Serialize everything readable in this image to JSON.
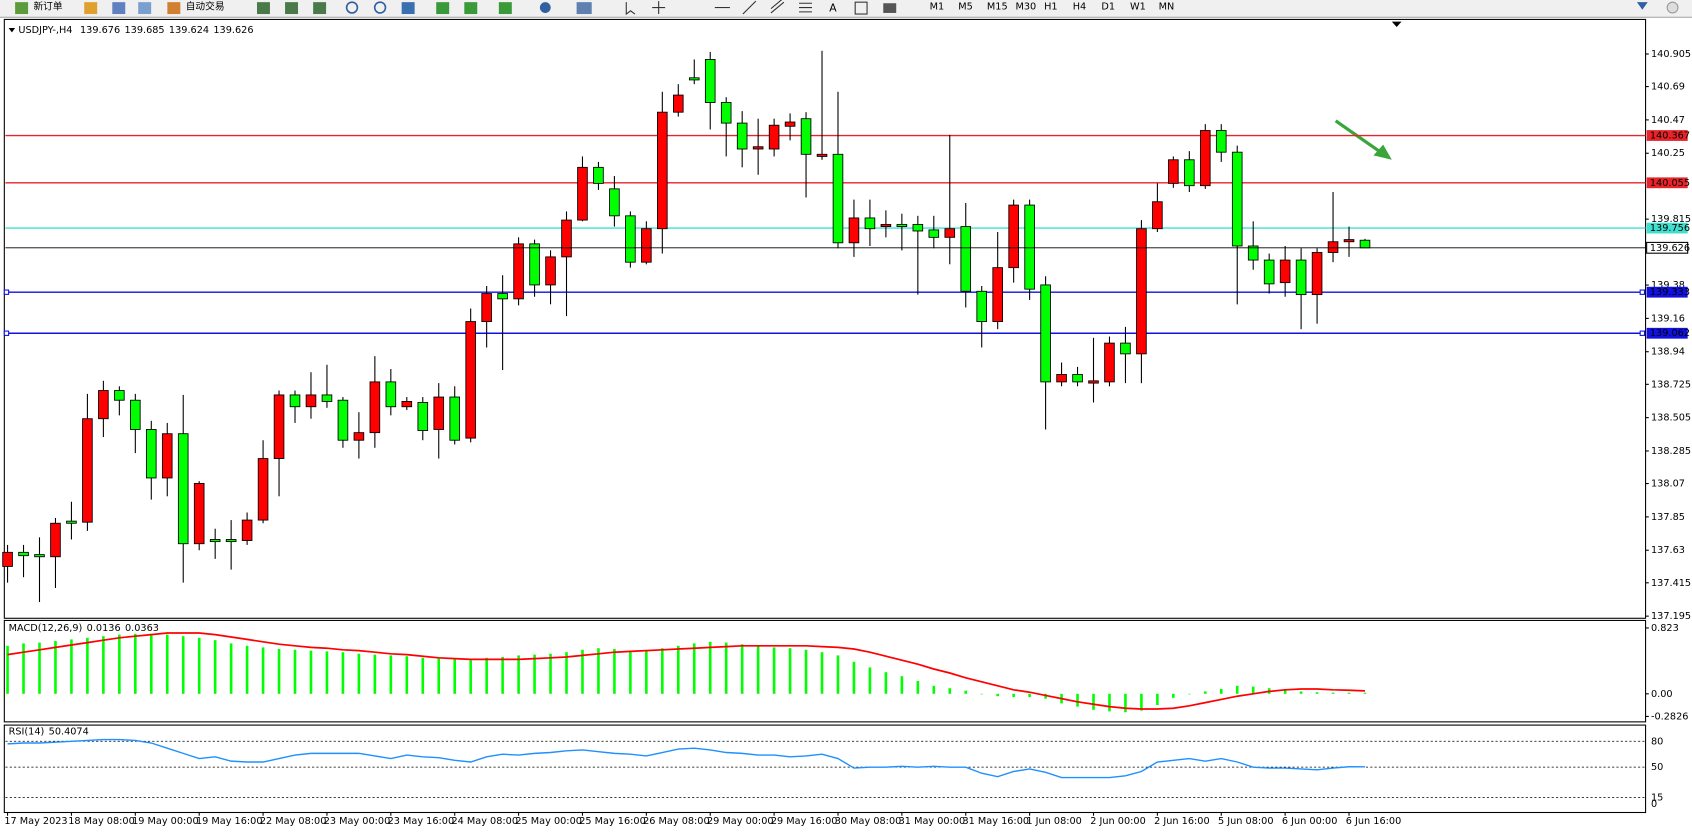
{
  "toolbar": {
    "new_order": "新订单",
    "auto_trading": "自动交易",
    "timeframes": [
      "M1",
      "M5",
      "M15",
      "M30",
      "H1",
      "H4",
      "D1",
      "W1",
      "MN"
    ]
  },
  "chart_data": [
    {
      "type": "candlestick",
      "title": "USDJPY-,H4",
      "categories": [
        "17 May 2023",
        null,
        null,
        null,
        "18 May 08:00",
        null,
        null,
        null,
        "19 May 00:00",
        null,
        null,
        null,
        "19 May 16:00",
        null,
        null,
        null,
        "22 May 08:00",
        null,
        null,
        null,
        "23 May 00:00",
        null,
        null,
        null,
        "23 May 16:00",
        null,
        null,
        null,
        "24 May 08:00",
        null,
        null,
        null,
        "25 May 00:00",
        null,
        null,
        null,
        "25 May 16:00",
        null,
        null,
        null,
        "26 May 08:00",
        null,
        null,
        null,
        "29 May 00:00",
        null,
        null,
        null,
        "29 May 16:00",
        null,
        null,
        null,
        "30 May 08:00",
        null,
        null,
        null,
        "31 May 00:00",
        null,
        null,
        null,
        "31 May 16:00",
        null,
        null,
        null,
        "1 Jun 08:00",
        null,
        null,
        null,
        "2 Jun 00:00",
        null,
        null,
        null,
        "2 Jun 16:00",
        null,
        null,
        null,
        "5 Jun 08:00",
        null,
        null,
        null,
        "6 Jun 00:00",
        null,
        null,
        null,
        "6 Jun 16:00",
        null
      ],
      "open": [
        137.523,
        137.616,
        137.601,
        137.587,
        137.822,
        137.815,
        138.498,
        138.684,
        138.62,
        138.427,
        138.107,
        138.399,
        137.673,
        137.701,
        137.701,
        137.694,
        137.829,
        138.235,
        138.655,
        138.577,
        138.655,
        138.62,
        138.356,
        138.406,
        138.741,
        138.577,
        138.605,
        138.427,
        138.641,
        138.37,
        139.139,
        139.324,
        139.289,
        139.652,
        139.381,
        139.566,
        139.809,
        140.157,
        140.015,
        139.837,
        139.531,
        139.752,
        140.521,
        140.748,
        140.869,
        140.585,
        140.449,
        140.278,
        140.278,
        140.428,
        140.478,
        140.229,
        140.243,
        139.659,
        139.823,
        139.766,
        139.78,
        139.78,
        139.744,
        139.695,
        139.766,
        139.339,
        139.139,
        139.495,
        139.908,
        139.381,
        138.741,
        138.79,
        138.733,
        138.741,
        138.997,
        138.926,
        139.752,
        140.051,
        140.207,
        140.036,
        140.4,
        140.257,
        139.638,
        139.545,
        139.396,
        139.545,
        139.317,
        139.595,
        139.666,
        139.676
      ],
      "high": [
        137.665,
        137.665,
        137.715,
        137.843,
        137.95,
        138.662,
        138.748,
        138.712,
        138.662,
        138.484,
        138.47,
        138.655,
        138.086,
        137.772,
        137.829,
        137.879,
        138.356,
        138.684,
        138.684,
        138.805,
        138.854,
        138.641,
        138.541,
        138.911,
        138.826,
        138.641,
        138.641,
        138.733,
        138.712,
        139.225,
        139.374,
        139.445,
        139.695,
        139.68,
        139.609,
        139.866,
        140.229,
        140.193,
        140.1,
        139.866,
        139.801,
        140.656,
        140.706,
        140.869,
        140.919,
        140.62,
        140.528,
        140.478,
        140.478,
        140.513,
        140.521,
        140.926,
        140.656,
        139.944,
        139.944,
        139.873,
        139.851,
        139.837,
        139.837,
        140.371,
        139.922,
        139.374,
        139.73,
        139.944,
        139.944,
        139.438,
        138.869,
        138.84,
        139.032,
        139.04,
        139.104,
        139.809,
        140.051,
        140.229,
        140.264,
        140.442,
        140.442,
        140.3,
        139.801,
        139.588,
        139.638,
        139.623,
        139.623,
        139.994,
        139.766,
        139.685
      ],
      "low": [
        137.416,
        137.452,
        137.288,
        137.381,
        137.701,
        137.758,
        138.377,
        138.52,
        138.271,
        137.964,
        137.986,
        137.416,
        137.63,
        137.573,
        137.502,
        137.665,
        137.808,
        137.986,
        138.47,
        138.498,
        138.57,
        138.306,
        138.235,
        138.306,
        138.52,
        138.555,
        138.356,
        138.235,
        138.328,
        138.342,
        138.968,
        138.819,
        139.246,
        139.303,
        139.253,
        139.175,
        139.801,
        140.008,
        139.766,
        139.495,
        139.517,
        139.588,
        140.492,
        140.706,
        140.407,
        140.229,
        140.157,
        140.108,
        140.229,
        140.335,
        139.958,
        140.207,
        139.623,
        139.566,
        139.638,
        139.695,
        139.609,
        139.317,
        139.623,
        139.517,
        139.232,
        138.968,
        139.089,
        139.396,
        139.282,
        138.427,
        138.712,
        138.712,
        138.605,
        138.712,
        138.733,
        138.733,
        139.73,
        140.022,
        139.994,
        140.015,
        140.193,
        139.253,
        139.481,
        139.324,
        139.303,
        139.089,
        139.125,
        139.531,
        139.566,
        139.624
      ],
      "close": [
        137.616,
        137.594,
        137.587,
        137.808,
        137.808,
        138.498,
        138.684,
        138.62,
        138.427,
        138.107,
        138.399,
        137.673,
        138.071,
        137.687,
        137.687,
        137.829,
        138.235,
        138.655,
        138.577,
        138.655,
        138.612,
        138.356,
        138.406,
        138.741,
        138.577,
        138.612,
        138.42,
        138.641,
        138.356,
        139.139,
        139.324,
        139.289,
        139.652,
        139.381,
        139.566,
        139.809,
        140.157,
        140.051,
        139.837,
        139.531,
        139.752,
        140.521,
        140.634,
        140.734,
        140.585,
        140.449,
        140.278,
        140.293,
        140.435,
        140.456,
        140.243,
        140.243,
        139.659,
        139.823,
        139.752,
        139.78,
        139.766,
        139.737,
        139.695,
        139.752,
        139.339,
        139.139,
        139.495,
        139.908,
        139.353,
        138.741,
        138.79,
        138.741,
        138.748,
        138.997,
        138.926,
        139.752,
        139.93,
        140.207,
        140.036,
        140.4,
        140.257,
        139.638,
        139.545,
        139.388,
        139.545,
        139.317,
        139.595,
        139.666,
        139.68,
        139.626
      ],
      "up_color": "#ff0000",
      "down_color": "#00ff00",
      "ylim": [
        137.188,
        141.119
      ],
      "yticks": [
        140.905,
        140.69,
        140.47,
        140.25,
        139.815,
        139.38,
        139.16,
        138.94,
        138.725,
        138.505,
        138.285,
        138.07,
        137.85,
        137.63,
        137.415,
        137.195
      ],
      "levels": [
        {
          "value": 140.367,
          "color": "#e8232a"
        },
        {
          "value": 140.055,
          "color": "#e8232a"
        },
        {
          "value": 139.756,
          "color": "#40e0d0"
        },
        {
          "value": 139.333,
          "color": "#1010e0"
        },
        {
          "value": 139.062,
          "color": "#1010e0"
        }
      ]
    },
    {
      "type": "macd",
      "title": "MACD(12,26,9)",
      "histogram": {
        "color": "#00ff00",
        "values": [
          0.6,
          0.63,
          0.64,
          0.66,
          0.68,
          0.7,
          0.72,
          0.74,
          0.75,
          0.75,
          0.74,
          0.72,
          0.7,
          0.67,
          0.63,
          0.6,
          0.58,
          0.56,
          0.55,
          0.54,
          0.53,
          0.52,
          0.5,
          0.49,
          0.48,
          0.47,
          0.45,
          0.44,
          0.43,
          0.42,
          0.45,
          0.46,
          0.48,
          0.49,
          0.5,
          0.52,
          0.55,
          0.57,
          0.56,
          0.54,
          0.54,
          0.57,
          0.6,
          0.63,
          0.65,
          0.64,
          0.62,
          0.6,
          0.58,
          0.57,
          0.55,
          0.52,
          0.48,
          0.4,
          0.33,
          0.27,
          0.22,
          0.16,
          0.1,
          0.07,
          0.04,
          0.0,
          -0.03,
          -0.04,
          -0.04,
          -0.06,
          -0.12,
          -0.16,
          -0.2,
          -0.22,
          -0.23,
          -0.21,
          -0.14,
          -0.05,
          0.0,
          0.03,
          0.06,
          0.1,
          0.09,
          0.07,
          0.05,
          0.03,
          0.02,
          0.015,
          0.014,
          0.0136
        ]
      },
      "signal": {
        "color": "#ff0000",
        "values": [
          0.49,
          0.52,
          0.55,
          0.58,
          0.61,
          0.64,
          0.67,
          0.7,
          0.72,
          0.74,
          0.76,
          0.76,
          0.76,
          0.74,
          0.71,
          0.68,
          0.65,
          0.62,
          0.6,
          0.58,
          0.57,
          0.55,
          0.54,
          0.52,
          0.5,
          0.49,
          0.47,
          0.45,
          0.44,
          0.43,
          0.43,
          0.43,
          0.43,
          0.44,
          0.45,
          0.46,
          0.48,
          0.5,
          0.52,
          0.53,
          0.54,
          0.55,
          0.56,
          0.57,
          0.58,
          0.59,
          0.6,
          0.6,
          0.6,
          0.6,
          0.6,
          0.59,
          0.58,
          0.56,
          0.52,
          0.47,
          0.42,
          0.37,
          0.31,
          0.26,
          0.2,
          0.15,
          0.1,
          0.05,
          0.02,
          -0.02,
          -0.06,
          -0.1,
          -0.13,
          -0.16,
          -0.18,
          -0.19,
          -0.19,
          -0.18,
          -0.15,
          -0.11,
          -0.07,
          -0.03,
          0.0,
          0.03,
          0.05,
          0.06,
          0.06,
          0.05,
          0.045,
          0.0363
        ]
      },
      "ylim": [
        -0.337,
        0.917
      ],
      "yticks": [
        0.823,
        {
          "value": 0,
          "label": "0.00"
        },
        -0.2826
      ]
    },
    {
      "type": "rsi",
      "title": "RSI(14)",
      "color": "#1e90ff",
      "values": [
        77,
        78,
        78,
        79,
        80,
        81,
        82,
        82,
        81,
        78,
        72,
        66,
        60,
        62,
        57,
        56,
        56,
        60,
        64,
        66,
        66,
        66,
        66,
        63,
        60,
        64,
        62,
        61,
        58,
        56,
        62,
        65,
        64,
        66,
        67,
        69,
        70,
        68,
        66,
        65,
        63,
        67,
        71,
        72,
        70,
        67,
        66,
        64,
        64,
        62,
        63,
        65,
        60,
        49,
        50,
        50,
        51,
        50,
        51,
        50,
        50,
        43,
        39,
        45,
        48,
        44,
        38,
        38,
        38,
        38,
        40,
        45,
        56,
        58,
        60,
        57,
        60,
        56,
        50,
        49,
        49,
        48,
        47,
        49,
        50.5,
        50.4074
      ],
      "ylim": [
        0,
        100
      ],
      "yticks": [
        80,
        50,
        15,
        0
      ]
    }
  ]
}
